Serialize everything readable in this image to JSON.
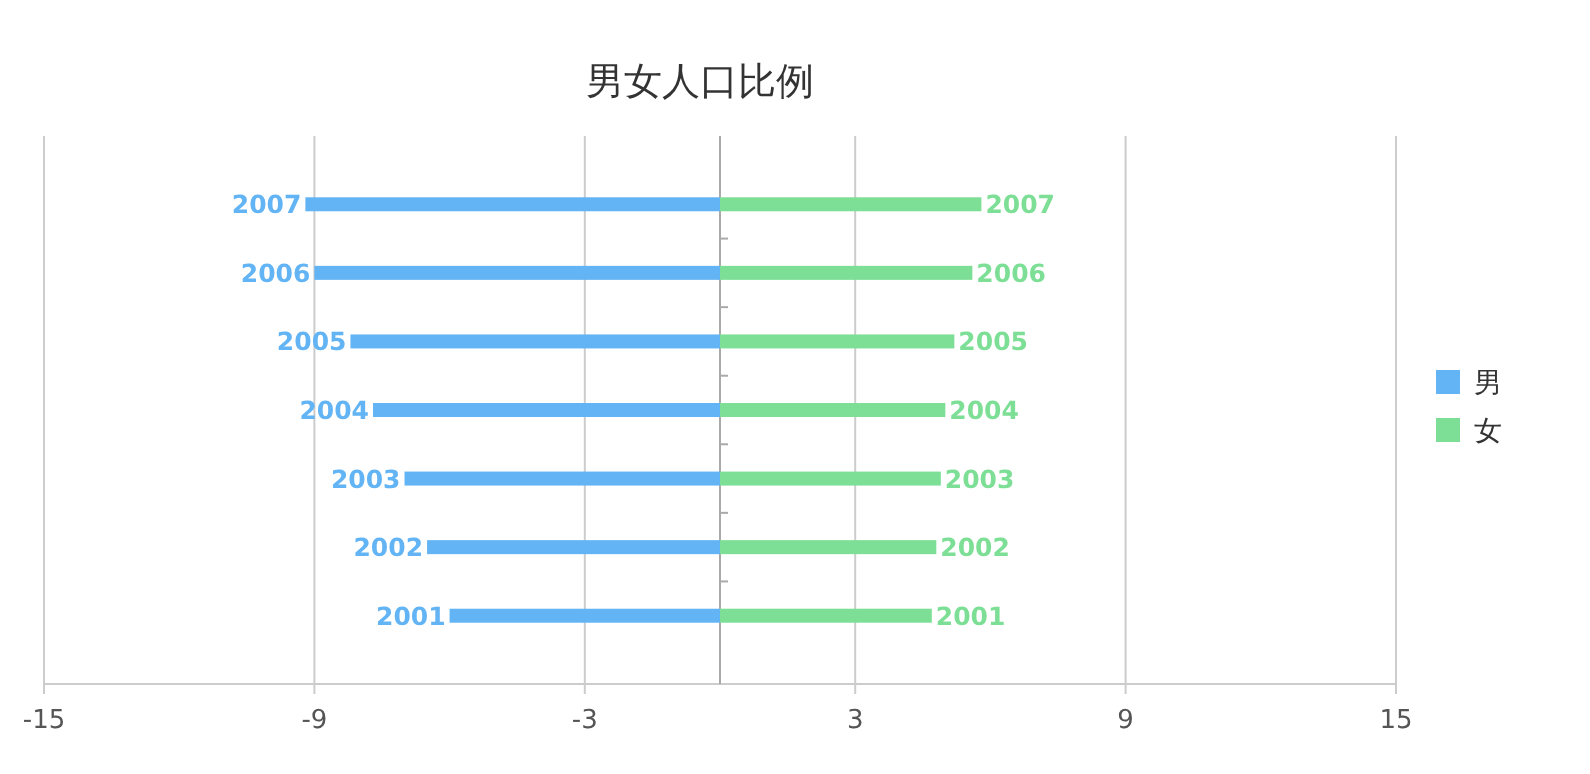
{
  "chart_data": {
    "type": "bar",
    "orientation": "horizontal",
    "stacked": true,
    "title": "男女人口比例",
    "categories": [
      "2007",
      "2006",
      "2005",
      "2004",
      "2003",
      "2002",
      "2001"
    ],
    "series": [
      {
        "name": "男",
        "color": "#63b4f4",
        "values": [
          -9.2,
          -9.0,
          -8.2,
          -7.7,
          -7.0,
          -6.5,
          -6.0
        ]
      },
      {
        "name": "女",
        "color": "#7ddf96",
        "values": [
          5.8,
          5.6,
          5.2,
          5.0,
          4.9,
          4.8,
          4.7
        ]
      }
    ],
    "xlim": [
      -15,
      15
    ],
    "xticks": [
      -15,
      -9,
      -3,
      3,
      9,
      15
    ],
    "grid": "x",
    "legend": "right"
  }
}
